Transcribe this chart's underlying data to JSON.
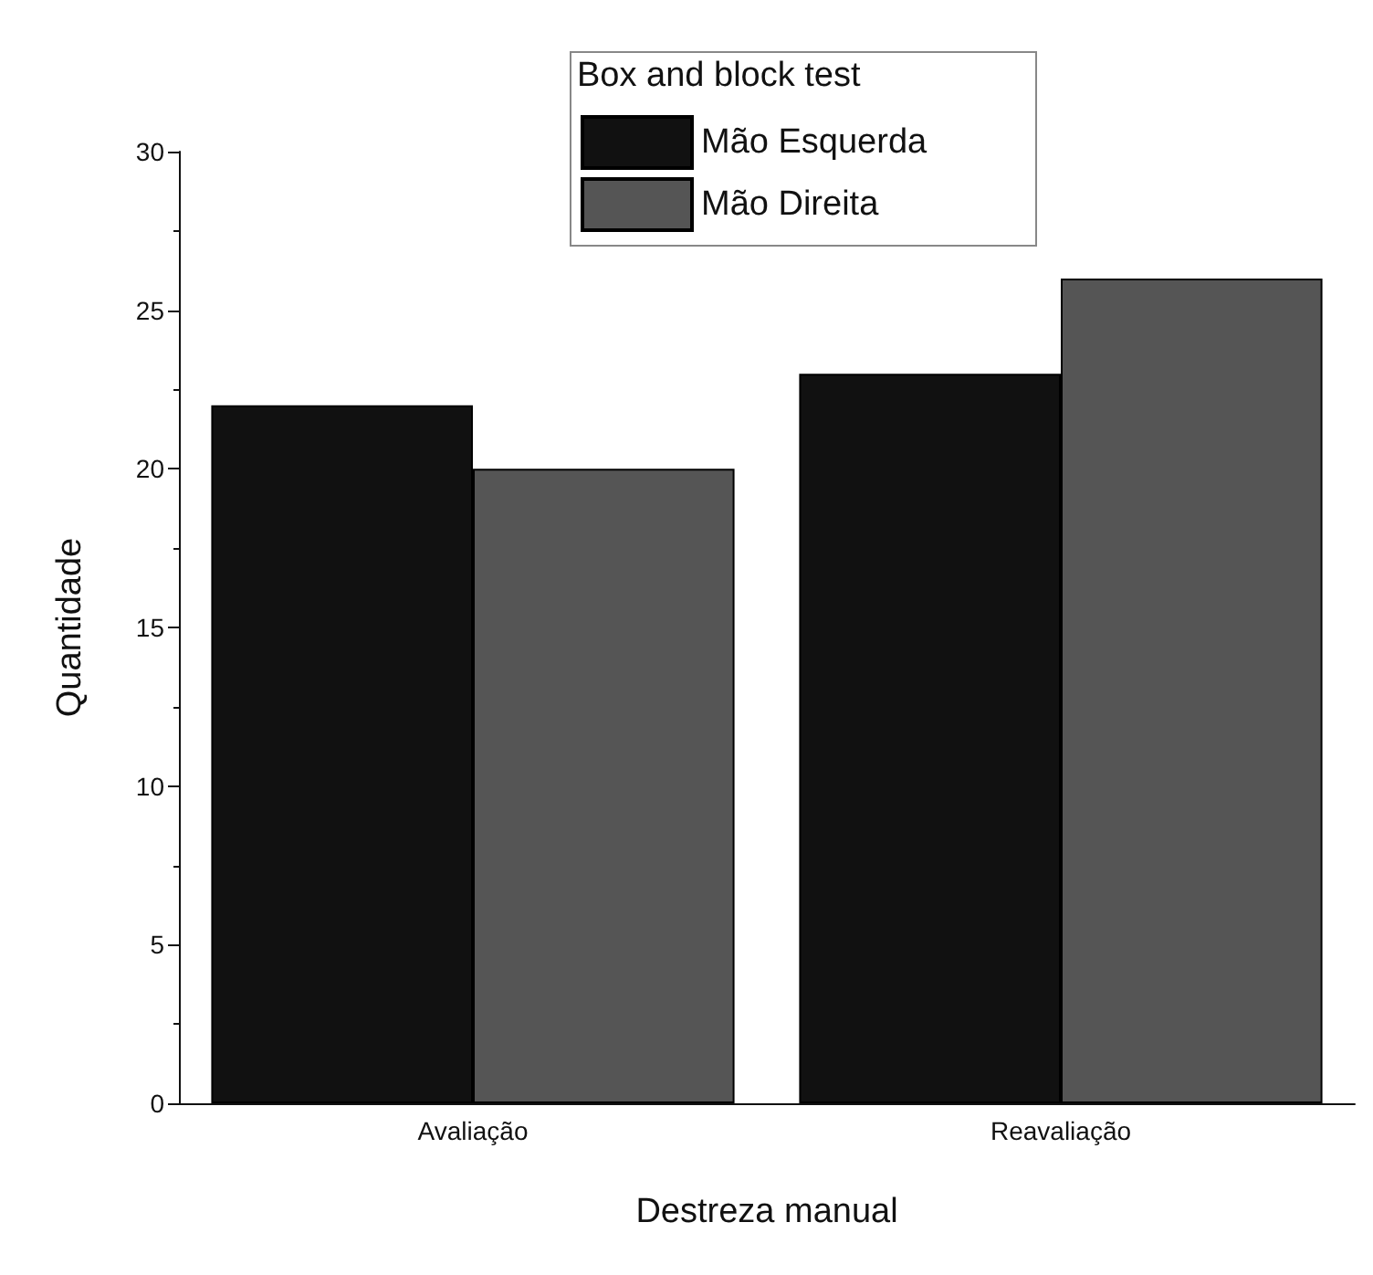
{
  "chart_data": {
    "type": "bar",
    "xlabel": "Destreza manual",
    "ylabel": "Quantidade",
    "legend_title": "Box and block test",
    "categories": [
      "Avaliação",
      "Reavaliação"
    ],
    "series": [
      {
        "name": "Mão Esquerda",
        "color": "#111111",
        "values": [
          22,
          23
        ]
      },
      {
        "name": "Mão Direita",
        "color": "#555555",
        "values": [
          20,
          26
        ]
      }
    ],
    "ylim": [
      0,
      30
    ],
    "yticks": [
      0,
      5,
      10,
      15,
      20,
      25,
      30
    ],
    "grid": false,
    "legend": "top"
  }
}
